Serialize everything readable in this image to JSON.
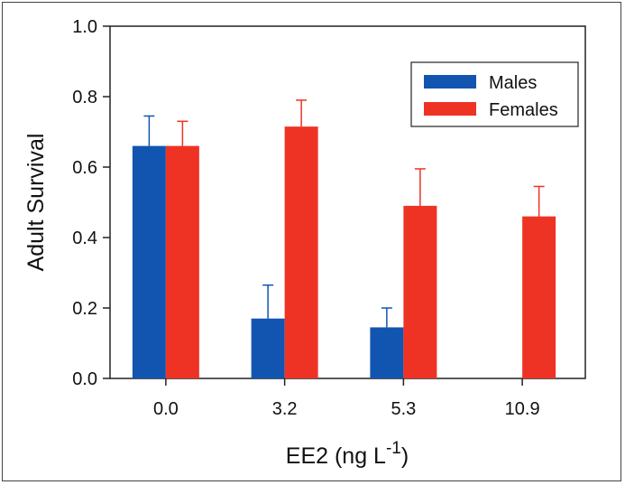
{
  "chart_data": {
    "type": "bar",
    "categories": [
      "0.0",
      "3.2",
      "5.3",
      "10.9"
    ],
    "series": [
      {
        "name": "Males",
        "color": "#1155b0",
        "values": [
          0.66,
          0.17,
          0.145,
          null
        ],
        "errors": [
          0.085,
          0.095,
          0.055,
          null
        ]
      },
      {
        "name": "Females",
        "color": "#ee3324",
        "values": [
          0.66,
          0.715,
          0.49,
          0.46
        ],
        "errors": [
          0.07,
          0.075,
          0.105,
          0.085
        ]
      }
    ],
    "ylabel": "Adult Survival",
    "xlabel_main": "EE2 (ng L",
    "xlabel_sup": "-1",
    "xlabel_close": ")",
    "ylim": [
      0,
      1.0
    ],
    "yticks": [
      "0.0",
      "0.2",
      "0.4",
      "0.6",
      "0.8",
      "1.0"
    ],
    "ytick_values": [
      0,
      0.2,
      0.4,
      0.6,
      0.8,
      1.0
    ],
    "legend_position": "top-right",
    "grid": false
  }
}
